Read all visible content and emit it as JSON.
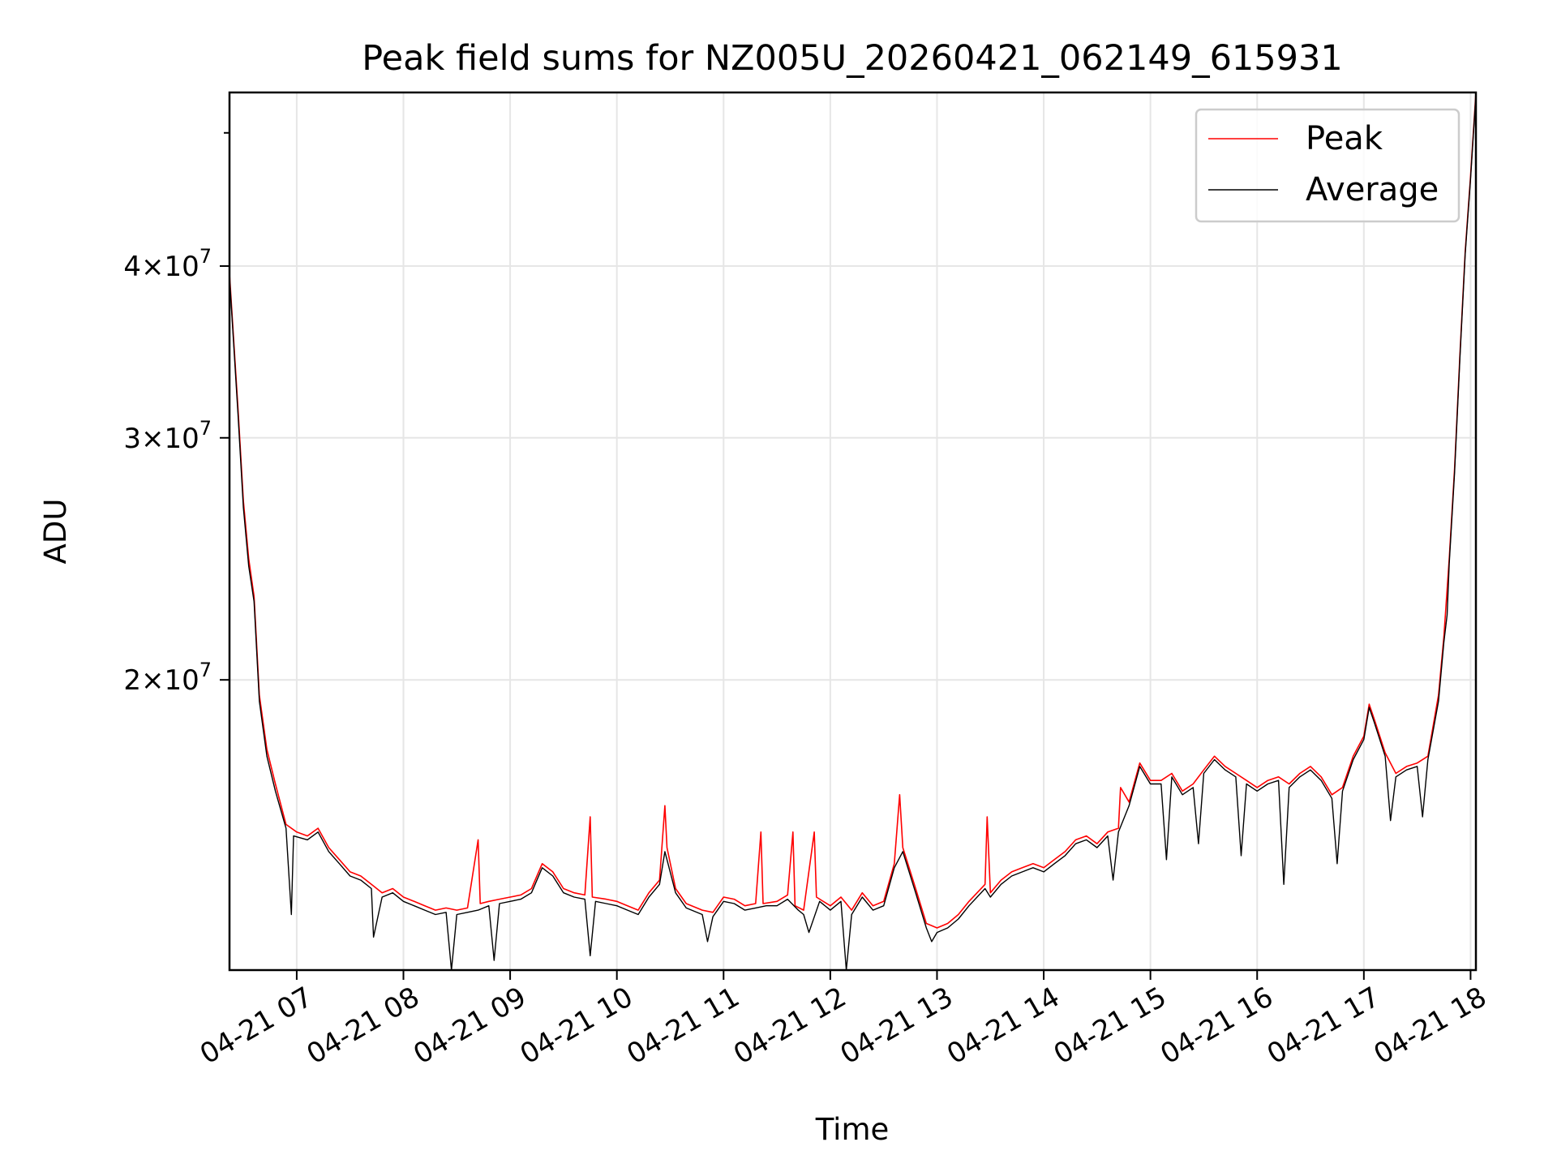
{
  "chart_data": {
    "type": "line",
    "title": "Peak field sums for NZ005U_20260421_062149_615931",
    "xlabel": "Time",
    "ylabel": "ADU",
    "y_scale": "log",
    "grid": true,
    "legend_position": "top-right",
    "x_range_hours": [
      6.37,
      18.05
    ],
    "y_range": [
      12300000,
      53500000
    ],
    "x_ticks": [
      {
        "hour": 7,
        "label": "04-21 07"
      },
      {
        "hour": 8,
        "label": "04-21 08"
      },
      {
        "hour": 9,
        "label": "04-21 09"
      },
      {
        "hour": 10,
        "label": "04-21 10"
      },
      {
        "hour": 11,
        "label": "04-21 11"
      },
      {
        "hour": 12,
        "label": "04-21 12"
      },
      {
        "hour": 13,
        "label": "04-21 13"
      },
      {
        "hour": 14,
        "label": "04-21 14"
      },
      {
        "hour": 15,
        "label": "04-21 15"
      },
      {
        "hour": 16,
        "label": "04-21 16"
      },
      {
        "hour": 17,
        "label": "04-21 17"
      },
      {
        "hour": 18,
        "label": "04-21 18"
      }
    ],
    "y_ticks": [
      {
        "value": 20000000,
        "mantissa": "2",
        "exponent": "7"
      },
      {
        "value": 30000000,
        "mantissa": "3",
        "exponent": "7"
      },
      {
        "value": 40000000,
        "mantissa": "4",
        "exponent": "7"
      }
    ],
    "y_minor_ticks": [
      50000000
    ],
    "series": [
      {
        "name": "Peak",
        "color": "#ff0000",
        "points": [
          [
            6.37,
            39500000
          ],
          [
            6.45,
            31500000
          ],
          [
            6.5,
            27000000
          ],
          [
            6.55,
            24500000
          ],
          [
            6.6,
            23000000
          ],
          [
            6.65,
            19500000
          ],
          [
            6.72,
            17800000
          ],
          [
            6.8,
            16800000
          ],
          [
            6.9,
            15700000
          ],
          [
            7.0,
            15500000
          ],
          [
            7.1,
            15400000
          ],
          [
            7.2,
            15600000
          ],
          [
            7.3,
            15100000
          ],
          [
            7.4,
            14800000
          ],
          [
            7.5,
            14500000
          ],
          [
            7.6,
            14400000
          ],
          [
            7.7,
            14200000
          ],
          [
            7.8,
            14000000
          ],
          [
            7.9,
            14100000
          ],
          [
            8.0,
            13900000
          ],
          [
            8.1,
            13800000
          ],
          [
            8.2,
            13700000
          ],
          [
            8.3,
            13600000
          ],
          [
            8.4,
            13650000
          ],
          [
            8.5,
            13600000
          ],
          [
            8.6,
            13650000
          ],
          [
            8.7,
            15300000
          ],
          [
            8.72,
            13750000
          ],
          [
            8.8,
            13800000
          ],
          [
            8.9,
            13850000
          ],
          [
            9.0,
            13900000
          ],
          [
            9.1,
            13950000
          ],
          [
            9.2,
            14100000
          ],
          [
            9.3,
            14700000
          ],
          [
            9.4,
            14500000
          ],
          [
            9.5,
            14100000
          ],
          [
            9.6,
            14000000
          ],
          [
            9.7,
            13950000
          ],
          [
            9.75,
            15900000
          ],
          [
            9.77,
            13900000
          ],
          [
            9.9,
            13850000
          ],
          [
            10.0,
            13800000
          ],
          [
            10.1,
            13700000
          ],
          [
            10.2,
            13600000
          ],
          [
            10.3,
            14000000
          ],
          [
            10.4,
            14300000
          ],
          [
            10.45,
            16200000
          ],
          [
            10.47,
            15100000
          ],
          [
            10.55,
            14100000
          ],
          [
            10.65,
            13750000
          ],
          [
            10.8,
            13600000
          ],
          [
            10.9,
            13550000
          ],
          [
            11.0,
            13900000
          ],
          [
            11.1,
            13850000
          ],
          [
            11.2,
            13700000
          ],
          [
            11.3,
            13750000
          ],
          [
            11.35,
            15500000
          ],
          [
            11.37,
            13750000
          ],
          [
            11.5,
            13800000
          ],
          [
            11.6,
            13950000
          ],
          [
            11.65,
            15500000
          ],
          [
            11.67,
            13700000
          ],
          [
            11.75,
            13600000
          ],
          [
            11.85,
            15500000
          ],
          [
            11.87,
            13900000
          ],
          [
            12.0,
            13700000
          ],
          [
            12.1,
            13900000
          ],
          [
            12.2,
            13600000
          ],
          [
            12.3,
            14000000
          ],
          [
            12.4,
            13700000
          ],
          [
            12.5,
            13800000
          ],
          [
            12.6,
            14700000
          ],
          [
            12.65,
            16500000
          ],
          [
            12.68,
            15100000
          ],
          [
            12.8,
            14100000
          ],
          [
            12.9,
            13300000
          ],
          [
            13.0,
            13200000
          ],
          [
            13.1,
            13300000
          ],
          [
            13.2,
            13500000
          ],
          [
            13.3,
            13800000
          ],
          [
            13.45,
            14200000
          ],
          [
            13.47,
            15900000
          ],
          [
            13.5,
            14000000
          ],
          [
            13.6,
            14300000
          ],
          [
            13.7,
            14500000
          ],
          [
            13.8,
            14600000
          ],
          [
            13.9,
            14700000
          ],
          [
            14.0,
            14600000
          ],
          [
            14.1,
            14800000
          ],
          [
            14.2,
            15000000
          ],
          [
            14.3,
            15300000
          ],
          [
            14.4,
            15400000
          ],
          [
            14.5,
            15200000
          ],
          [
            14.6,
            15500000
          ],
          [
            14.7,
            15600000
          ],
          [
            14.72,
            16700000
          ],
          [
            14.8,
            16300000
          ],
          [
            14.9,
            17400000
          ],
          [
            15.0,
            16900000
          ],
          [
            15.1,
            16900000
          ],
          [
            15.2,
            17100000
          ],
          [
            15.3,
            16600000
          ],
          [
            15.4,
            16800000
          ],
          [
            15.5,
            17200000
          ],
          [
            15.6,
            17600000
          ],
          [
            15.7,
            17300000
          ],
          [
            15.8,
            17100000
          ],
          [
            15.9,
            16900000
          ],
          [
            16.0,
            16700000
          ],
          [
            16.1,
            16900000
          ],
          [
            16.2,
            17000000
          ],
          [
            16.3,
            16800000
          ],
          [
            16.4,
            17100000
          ],
          [
            16.5,
            17300000
          ],
          [
            16.6,
            17000000
          ],
          [
            16.7,
            16500000
          ],
          [
            16.8,
            16700000
          ],
          [
            16.9,
            17600000
          ],
          [
            17.0,
            18200000
          ],
          [
            17.05,
            19200000
          ],
          [
            17.1,
            18700000
          ],
          [
            17.2,
            17700000
          ],
          [
            17.3,
            17100000
          ],
          [
            17.4,
            17300000
          ],
          [
            17.5,
            17400000
          ],
          [
            17.6,
            17600000
          ],
          [
            17.7,
            19500000
          ],
          [
            17.75,
            21500000
          ],
          [
            17.8,
            24500000
          ],
          [
            17.85,
            28500000
          ],
          [
            17.9,
            34500000
          ],
          [
            17.95,
            41000000
          ],
          [
            18.0,
            46500000
          ],
          [
            18.05,
            53500000
          ]
        ]
      },
      {
        "name": "Average",
        "color": "#000000",
        "points": [
          [
            6.37,
            39300000
          ],
          [
            6.45,
            31200000
          ],
          [
            6.5,
            26700000
          ],
          [
            6.55,
            24200000
          ],
          [
            6.6,
            22800000
          ],
          [
            6.65,
            19300000
          ],
          [
            6.72,
            17600000
          ],
          [
            6.8,
            16600000
          ],
          [
            6.9,
            15600000
          ],
          [
            6.95,
            13500000
          ],
          [
            6.97,
            15400000
          ],
          [
            7.1,
            15300000
          ],
          [
            7.2,
            15500000
          ],
          [
            7.3,
            15000000
          ],
          [
            7.4,
            14700000
          ],
          [
            7.5,
            14400000
          ],
          [
            7.6,
            14300000
          ],
          [
            7.7,
            14100000
          ],
          [
            7.72,
            13000000
          ],
          [
            7.8,
            13900000
          ],
          [
            7.9,
            14000000
          ],
          [
            8.0,
            13800000
          ],
          [
            8.1,
            13700000
          ],
          [
            8.2,
            13600000
          ],
          [
            8.3,
            13500000
          ],
          [
            8.4,
            13550000
          ],
          [
            8.45,
            12300000
          ],
          [
            8.5,
            13500000
          ],
          [
            8.6,
            13550000
          ],
          [
            8.7,
            13600000
          ],
          [
            8.8,
            13700000
          ],
          [
            8.85,
            12500000
          ],
          [
            8.9,
            13750000
          ],
          [
            9.0,
            13800000
          ],
          [
            9.1,
            13850000
          ],
          [
            9.2,
            14000000
          ],
          [
            9.3,
            14600000
          ],
          [
            9.4,
            14400000
          ],
          [
            9.5,
            14000000
          ],
          [
            9.6,
            13900000
          ],
          [
            9.7,
            13850000
          ],
          [
            9.75,
            12600000
          ],
          [
            9.8,
            13800000
          ],
          [
            9.9,
            13750000
          ],
          [
            10.0,
            13700000
          ],
          [
            10.1,
            13600000
          ],
          [
            10.2,
            13500000
          ],
          [
            10.3,
            13900000
          ],
          [
            10.4,
            14200000
          ],
          [
            10.45,
            15000000
          ],
          [
            10.55,
            14000000
          ],
          [
            10.65,
            13650000
          ],
          [
            10.8,
            13500000
          ],
          [
            10.85,
            12900000
          ],
          [
            10.9,
            13450000
          ],
          [
            11.0,
            13800000
          ],
          [
            11.1,
            13750000
          ],
          [
            11.2,
            13600000
          ],
          [
            11.3,
            13650000
          ],
          [
            11.4,
            13700000
          ],
          [
            11.5,
            13700000
          ],
          [
            11.6,
            13850000
          ],
          [
            11.7,
            13600000
          ],
          [
            11.75,
            13500000
          ],
          [
            11.8,
            13100000
          ],
          [
            11.9,
            13800000
          ],
          [
            12.0,
            13600000
          ],
          [
            12.1,
            13800000
          ],
          [
            12.15,
            12300000
          ],
          [
            12.2,
            13500000
          ],
          [
            12.3,
            13900000
          ],
          [
            12.4,
            13600000
          ],
          [
            12.5,
            13700000
          ],
          [
            12.6,
            14600000
          ],
          [
            12.68,
            15000000
          ],
          [
            12.8,
            14000000
          ],
          [
            12.9,
            13200000
          ],
          [
            12.95,
            12900000
          ],
          [
            13.0,
            13100000
          ],
          [
            13.1,
            13200000
          ],
          [
            13.2,
            13400000
          ],
          [
            13.3,
            13700000
          ],
          [
            13.45,
            14100000
          ],
          [
            13.5,
            13900000
          ],
          [
            13.6,
            14200000
          ],
          [
            13.7,
            14400000
          ],
          [
            13.8,
            14500000
          ],
          [
            13.9,
            14600000
          ],
          [
            14.0,
            14500000
          ],
          [
            14.1,
            14700000
          ],
          [
            14.2,
            14900000
          ],
          [
            14.3,
            15200000
          ],
          [
            14.4,
            15300000
          ],
          [
            14.5,
            15100000
          ],
          [
            14.6,
            15400000
          ],
          [
            14.65,
            14300000
          ],
          [
            14.7,
            15500000
          ],
          [
            14.8,
            16200000
          ],
          [
            14.9,
            17300000
          ],
          [
            15.0,
            16800000
          ],
          [
            15.1,
            16800000
          ],
          [
            15.15,
            14800000
          ],
          [
            15.2,
            17000000
          ],
          [
            15.3,
            16500000
          ],
          [
            15.4,
            16700000
          ],
          [
            15.45,
            15200000
          ],
          [
            15.5,
            17100000
          ],
          [
            15.6,
            17500000
          ],
          [
            15.7,
            17200000
          ],
          [
            15.8,
            17000000
          ],
          [
            15.85,
            14900000
          ],
          [
            15.9,
            16800000
          ],
          [
            16.0,
            16600000
          ],
          [
            16.1,
            16800000
          ],
          [
            16.2,
            16900000
          ],
          [
            16.25,
            14200000
          ],
          [
            16.3,
            16700000
          ],
          [
            16.4,
            17000000
          ],
          [
            16.5,
            17200000
          ],
          [
            16.6,
            16900000
          ],
          [
            16.7,
            16400000
          ],
          [
            16.75,
            14700000
          ],
          [
            16.8,
            16600000
          ],
          [
            16.9,
            17500000
          ],
          [
            17.0,
            18100000
          ],
          [
            17.05,
            19100000
          ],
          [
            17.1,
            18600000
          ],
          [
            17.2,
            17600000
          ],
          [
            17.25,
            15800000
          ],
          [
            17.3,
            17000000
          ],
          [
            17.4,
            17200000
          ],
          [
            17.5,
            17300000
          ],
          [
            17.55,
            15900000
          ],
          [
            17.6,
            17500000
          ],
          [
            17.7,
            19300000
          ],
          [
            17.75,
            21300000
          ],
          [
            17.78,
            22300000
          ],
          [
            17.8,
            24300000
          ],
          [
            17.85,
            28300000
          ],
          [
            17.9,
            34300000
          ],
          [
            17.95,
            40800000
          ],
          [
            18.0,
            46300000
          ],
          [
            18.05,
            53300000
          ]
        ]
      }
    ]
  }
}
